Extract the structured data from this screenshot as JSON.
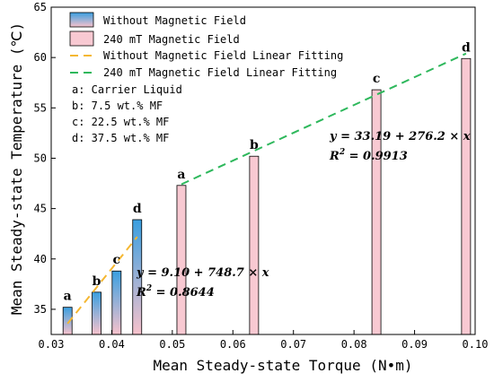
{
  "colors": {
    "without_bar_top": "#3a9fe0",
    "without_bar_bottom": "#f7c2cc",
    "with_bar_fill": "#f8c9d2",
    "bar_edge": "#000000",
    "without_fit": "#f5b731",
    "with_fit": "#2eb85c"
  },
  "chart_data": {
    "type": "bar",
    "xlabel": "Mean Steady-state Torque (N•m)",
    "ylabel": "Mean Steady-state Temperature (℃)",
    "xlim": [
      0.03,
      0.1
    ],
    "ylim": [
      32.5,
      65
    ],
    "xticks": [
      "0.03",
      "0.04",
      "0.05",
      "0.06",
      "0.07",
      "0.08",
      "0.09",
      "0.10"
    ],
    "yticks": [
      "35",
      "40",
      "45",
      "50",
      "55",
      "60",
      "65"
    ],
    "grid": false,
    "legend_position": "top-left",
    "series": [
      {
        "name": "Without Magnetic Field",
        "points": [
          {
            "label": "a",
            "x": 0.0327,
            "y": 35.2
          },
          {
            "label": "b",
            "x": 0.0375,
            "y": 36.7
          },
          {
            "label": "c",
            "x": 0.0408,
            "y": 38.8
          },
          {
            "label": "d",
            "x": 0.0442,
            "y": 43.9
          }
        ]
      },
      {
        "name": "240 mT Magnetic Field",
        "points": [
          {
            "label": "a",
            "x": 0.0515,
            "y": 47.3
          },
          {
            "label": "b",
            "x": 0.0635,
            "y": 50.2
          },
          {
            "label": "c",
            "x": 0.0837,
            "y": 56.8
          },
          {
            "label": "d",
            "x": 0.0985,
            "y": 59.9
          }
        ]
      }
    ],
    "fits": [
      {
        "name": "Without Magnetic Field Linear Fitting",
        "intercept": 9.1,
        "slope": 748.7,
        "x_range": [
          0.0327,
          0.0442
        ],
        "equation": "y = 9.10 + 748.7 × x",
        "r2_label": "R",
        "r2_value": " = 0.8644"
      },
      {
        "name": "240 mT Magnetic Field Linear Fitting",
        "intercept": 33.19,
        "slope": 276.2,
        "x_range": [
          0.0515,
          0.0985
        ],
        "equation": "y = 33.19 + 276.2 × x",
        "r2_label": "R",
        "r2_value": " = 0.9913"
      }
    ],
    "annotations": [
      "a: Carrier Liquid",
      "b: 7.5 wt.% MF",
      "c: 22.5 wt.% MF",
      "d: 37.5 wt.% MF"
    ]
  }
}
